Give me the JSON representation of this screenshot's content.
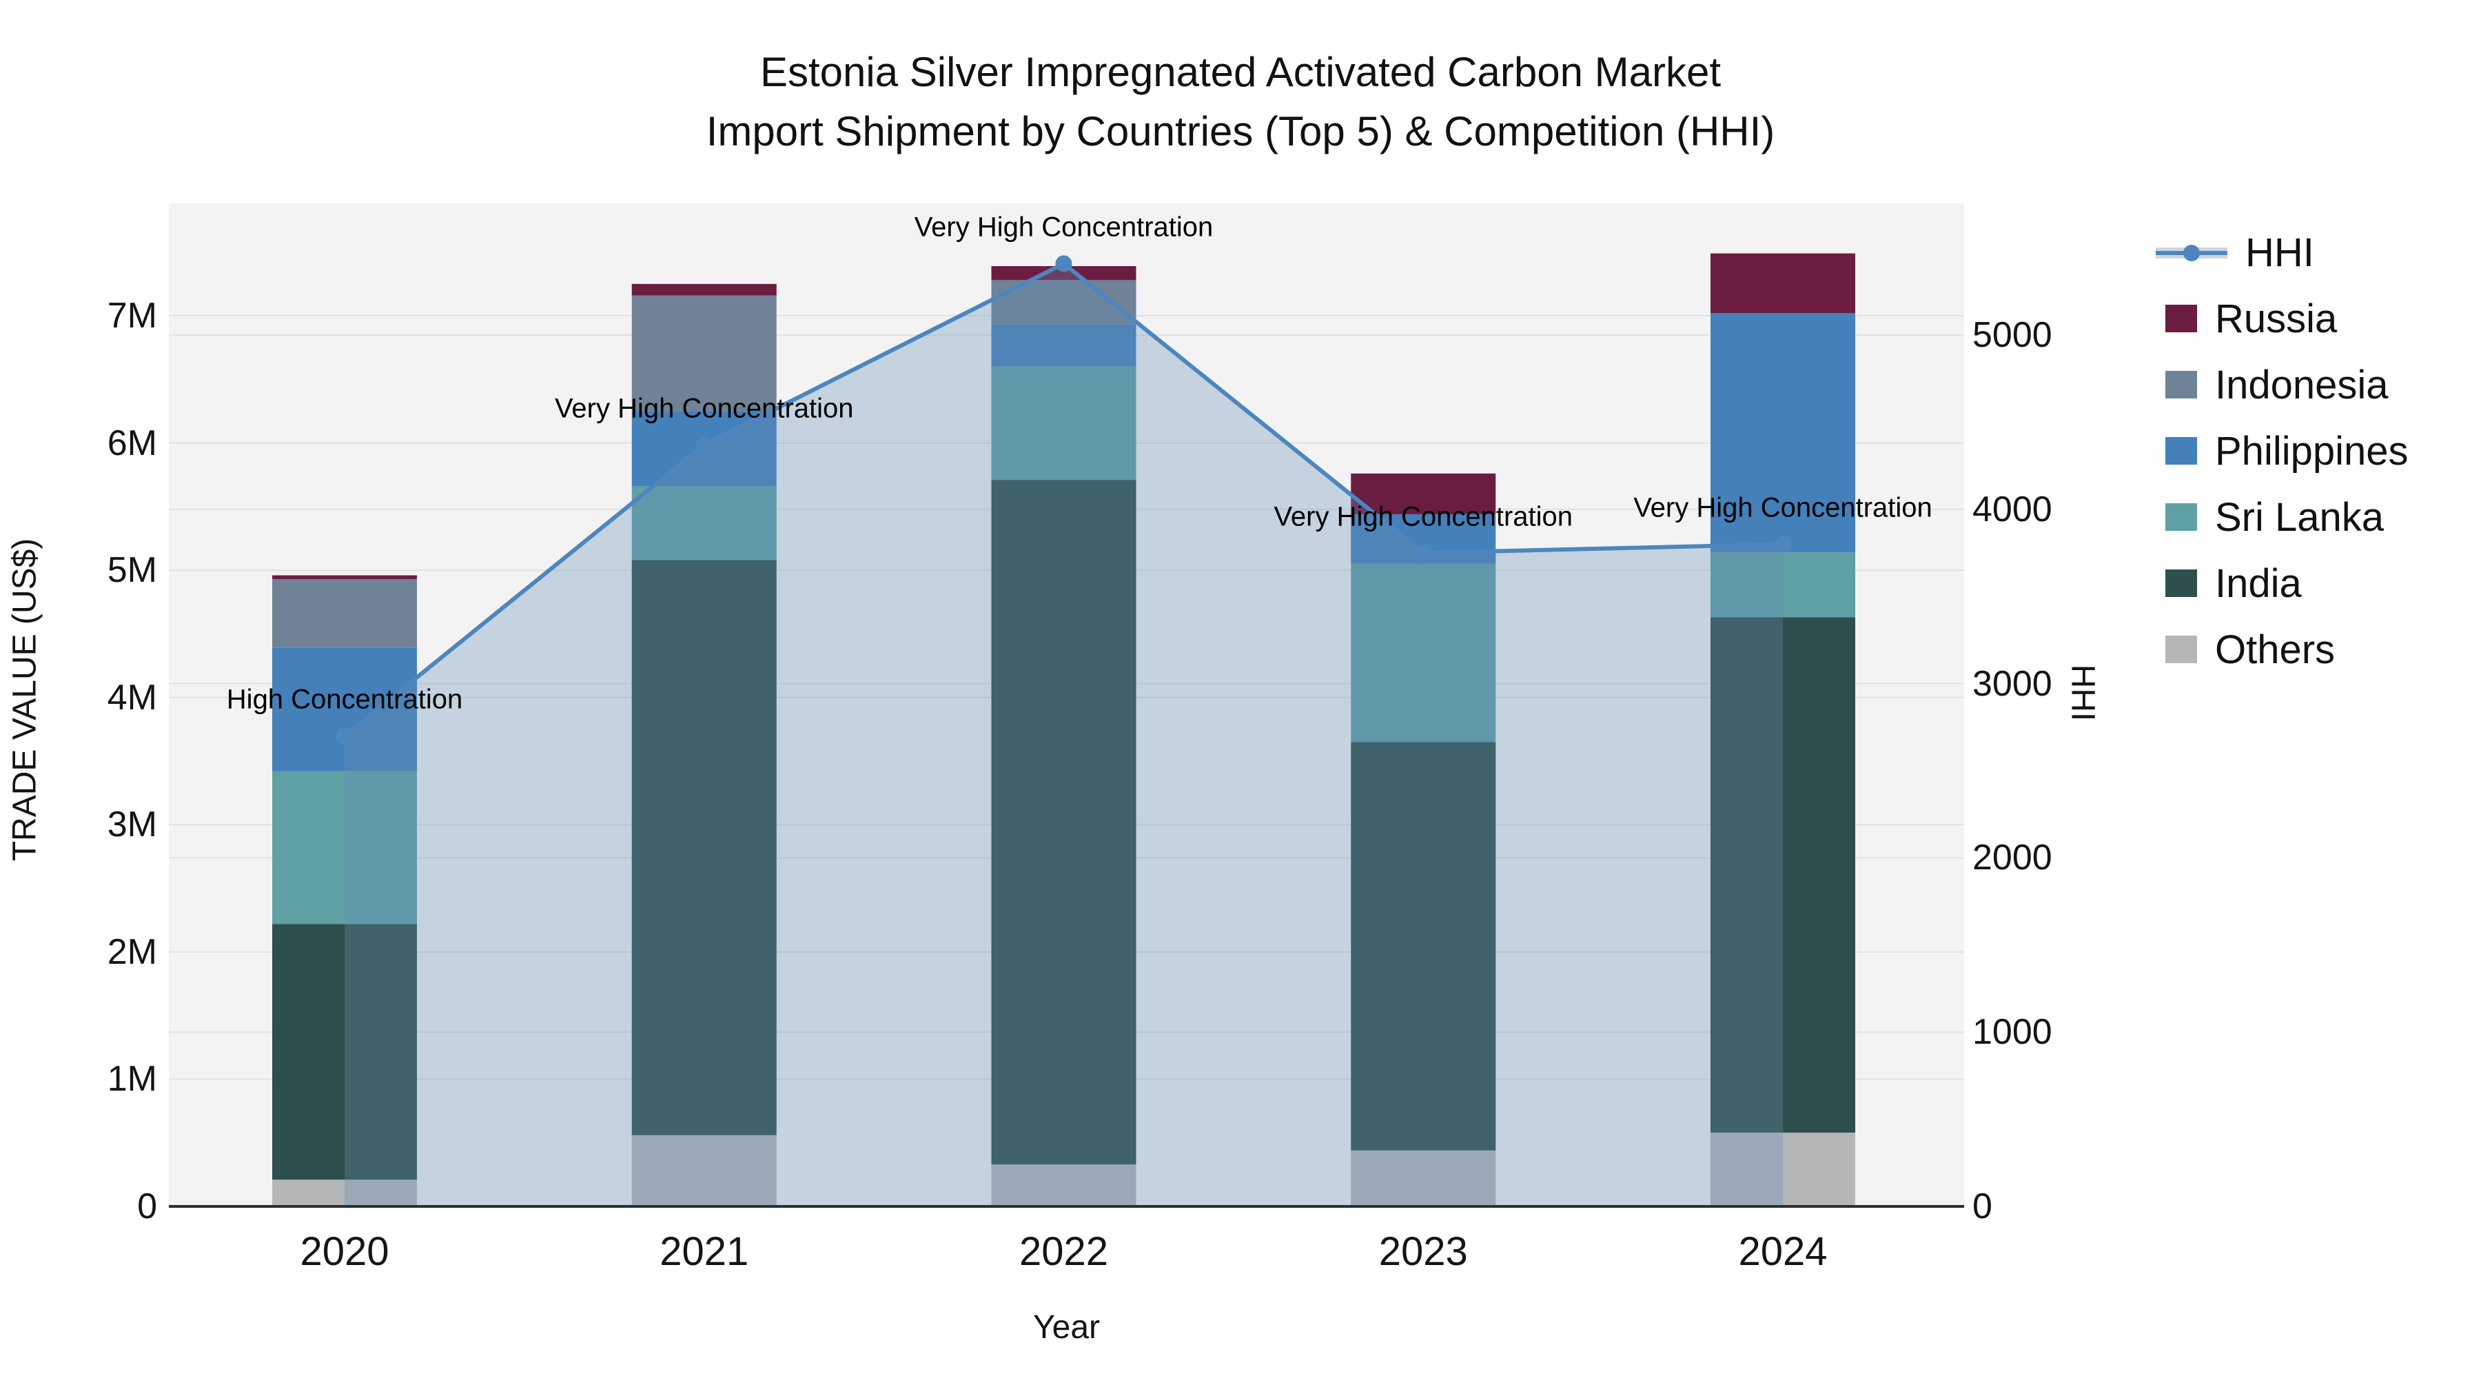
{
  "title": {
    "line1": "Estonia Silver Impregnated Activated Carbon Market",
    "line2": "Import Shipment by Countries (Top 5) & Competition (HHI)"
  },
  "axes": {
    "x": {
      "label": "Year",
      "ticks": [
        "2020",
        "2021",
        "2022",
        "2023",
        "2024"
      ]
    },
    "left": {
      "label": "TRADE VALUE (US$)",
      "ticks": [
        "0",
        "1M",
        "2M",
        "3M",
        "4M",
        "5M",
        "6M",
        "7M"
      ],
      "tick_values_musd": [
        0,
        1,
        2,
        3,
        4,
        5,
        6,
        7
      ]
    },
    "right": {
      "label": "HHI",
      "ticks": [
        "0",
        "1000",
        "2000",
        "3000",
        "4000",
        "5000"
      ],
      "tick_values": [
        0,
        1000,
        2000,
        3000,
        4000,
        5000
      ]
    }
  },
  "legend": {
    "items": [
      {
        "label": "HHI",
        "kind": "line",
        "color": "#4d86bf"
      },
      {
        "label": "Russia",
        "kind": "patch",
        "color": "#6b1c41"
      },
      {
        "label": "Indonesia",
        "kind": "patch",
        "color": "#6f8296"
      },
      {
        "label": "Philippines",
        "kind": "patch",
        "color": "#4480ba"
      },
      {
        "label": "Sri Lanka",
        "kind": "patch",
        "color": "#5fa0a4"
      },
      {
        "label": "India",
        "kind": "patch",
        "color": "#2e4f4b"
      },
      {
        "label": "Others",
        "kind": "patch",
        "color": "#b5b6b8"
      }
    ]
  },
  "chart_data": {
    "type": "bar",
    "subtype": "stacked-bar-with-line-overlay",
    "categories": [
      "2020",
      "2021",
      "2022",
      "2023",
      "2024"
    ],
    "bar_unit": "million US$",
    "stack_order_bottom_to_top": [
      "Others",
      "India",
      "Sri Lanka",
      "Philippines",
      "Indonesia",
      "Russia"
    ],
    "series": [
      {
        "name": "Others",
        "type": "bar",
        "color": "#b5b6b8",
        "values_musd": [
          0.21,
          0.56,
          0.33,
          0.44,
          0.58
        ]
      },
      {
        "name": "India",
        "type": "bar",
        "color": "#2e4f4b",
        "values_musd": [
          2.01,
          4.52,
          5.38,
          3.21,
          4.05
        ]
      },
      {
        "name": "Sri Lanka",
        "type": "bar",
        "color": "#5fa0a4",
        "values_musd": [
          1.2,
          0.58,
          0.89,
          1.4,
          0.51
        ]
      },
      {
        "name": "Philippines",
        "type": "bar",
        "color": "#4480ba",
        "values_musd": [
          0.97,
          0.59,
          0.33,
          0.39,
          1.88
        ]
      },
      {
        "name": "Indonesia",
        "type": "bar",
        "color": "#6f8296",
        "values_musd": [
          0.54,
          0.91,
          0.35,
          0.0,
          0.0
        ]
      },
      {
        "name": "Russia",
        "type": "bar",
        "color": "#6b1c41",
        "values_musd": [
          0.03,
          0.09,
          0.11,
          0.32,
          0.47
        ]
      }
    ],
    "bar_totals_musd": [
      4.96,
      7.25,
      7.39,
      5.76,
      7.49
    ],
    "line_series": {
      "name": "HHI",
      "axis": "right",
      "values": [
        2700,
        4370,
        5410,
        3750,
        3800
      ],
      "color": "#4d86bf",
      "area_fill_rgba": "rgba(100,140,180,0.32)",
      "marker": "circle"
    },
    "annotations": [
      {
        "category": "2020",
        "text": "High Concentration"
      },
      {
        "category": "2021",
        "text": "Very High Concentration"
      },
      {
        "category": "2022",
        "text": "Very High Concentration"
      },
      {
        "category": "2023",
        "text": "Very High Concentration"
      },
      {
        "category": "2024",
        "text": "Very High Concentration"
      }
    ],
    "title": "Estonia Silver Impregnated Activated Carbon Market Import Shipment by Countries (Top 5) & Competition (HHI)",
    "xlabel": "Year",
    "ylabel": "TRADE VALUE (US$)",
    "ylabel_right": "HHI",
    "ylim_left_musd": [
      0,
      7.88
    ],
    "ylim_right": [
      0,
      5760
    ],
    "grid": true,
    "legend_position": "right"
  },
  "colors": {
    "plot_background": "#f3f3f3",
    "figure_background": "#ffffff",
    "gridline": "#e2e2e2",
    "axis_line": "#2e2e2e",
    "annotation_text": "#000000"
  }
}
